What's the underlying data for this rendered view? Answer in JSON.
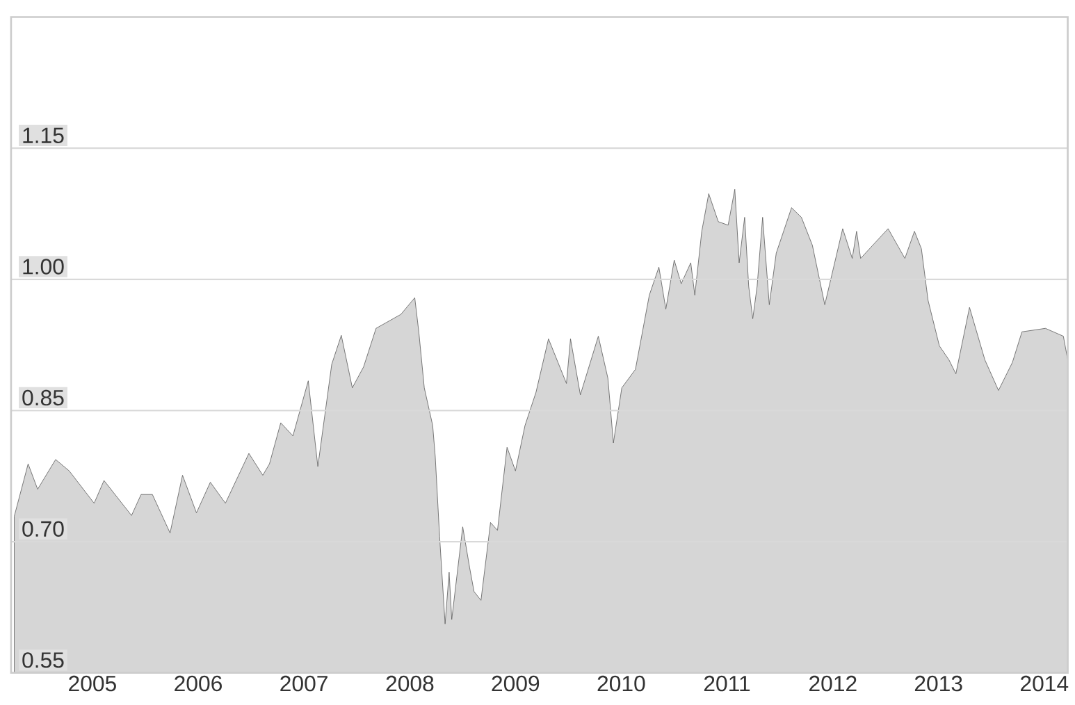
{
  "chart_data": {
    "type": "area",
    "x": [
      "2004-10-04",
      "2004-11-21",
      "2004-12-24",
      "2005-02-24",
      "2005-04-12",
      "2005-07-07",
      "2005-08-10",
      "2005-11-13",
      "2005-12-16",
      "2006-01-24",
      "2006-03-26",
      "2006-05-08",
      "2006-06-25",
      "2006-08-12",
      "2006-10-03",
      "2006-12-23",
      "2007-02-09",
      "2007-03-04",
      "2007-04-12",
      "2007-05-24",
      "2007-07-16",
      "2007-08-18",
      "2007-10-05",
      "2007-11-07",
      "2007-12-15",
      "2008-01-23",
      "2008-03-06",
      "2008-05-31",
      "2008-07-18",
      "2008-08-01",
      "2008-08-20",
      "2008-09-18",
      "2008-09-27",
      "2008-10-12",
      "2008-10-31",
      "2008-11-14",
      "2008-11-23",
      "2008-12-31",
      "2009-01-24",
      "2009-02-08",
      "2009-03-04",
      "2009-04-06",
      "2009-04-30",
      "2009-06-02",
      "2009-07-01",
      "2009-08-03",
      "2009-09-10",
      "2009-10-23",
      "2009-12-24",
      "2010-01-07",
      "2010-02-10",
      "2010-04-13",
      "2010-05-16",
      "2010-06-04",
      "2010-07-03",
      "2010-08-19",
      "2010-10-06",
      "2010-11-08",
      "2010-12-02",
      "2010-12-31",
      "2011-01-24",
      "2011-02-26",
      "2011-03-12",
      "2011-04-05",
      "2011-04-29",
      "2011-06-01",
      "2011-07-05",
      "2011-07-28",
      "2011-08-12",
      "2011-08-31",
      "2011-09-14",
      "2011-09-28",
      "2011-10-13",
      "2011-11-01",
      "2011-11-24",
      "2011-12-18",
      "2012-02-09",
      "2012-03-14",
      "2012-04-21",
      "2012-06-03",
      "2012-08-04",
      "2012-09-06",
      "2012-09-21",
      "2012-10-05",
      "2013-01-08",
      "2013-03-07",
      "2013-04-09",
      "2013-05-03",
      "2013-05-26",
      "2013-07-04",
      "2013-08-06",
      "2013-08-30",
      "2013-10-16",
      "2013-12-08",
      "2014-01-24",
      "2014-03-13",
      "2014-04-15",
      "2014-07-05",
      "2014-09-05",
      "2014-09-20"
    ],
    "series": [
      {
        "color": "#5a5a5a",
        "values": [
          0.729,
          0.789,
          0.76,
          0.794,
          0.781,
          0.744,
          0.77,
          0.73,
          0.754,
          0.754,
          0.71,
          0.776,
          0.733,
          0.768,
          0.744,
          0.801,
          0.776,
          0.789,
          0.836,
          0.821,
          0.884,
          0.786,
          0.903,
          0.936,
          0.876,
          0.9,
          0.944,
          0.96,
          0.979,
          0.94,
          0.876,
          0.833,
          0.797,
          0.706,
          0.606,
          0.665,
          0.611,
          0.717,
          0.67,
          0.643,
          0.633,
          0.722,
          0.713,
          0.808,
          0.781,
          0.833,
          0.871,
          0.932,
          0.881,
          0.932,
          0.868,
          0.935,
          0.887,
          0.813,
          0.876,
          0.897,
          0.982,
          1.014,
          0.966,
          1.022,
          0.995,
          1.019,
          0.982,
          1.055,
          1.098,
          1.066,
          1.062,
          1.103,
          1.019,
          1.071,
          0.992,
          0.955,
          0.992,
          1.071,
          0.971,
          1.03,
          1.082,
          1.071,
          1.039,
          0.971,
          1.058,
          1.024,
          1.055,
          1.024,
          1.058,
          1.024,
          1.055,
          1.035,
          0.976,
          0.924,
          0.908,
          0.892,
          0.968,
          0.908,
          0.873,
          0.905,
          0.94,
          0.944,
          0.935,
          0.908
        ]
      }
    ],
    "xlim": [
      "2004-09-23",
      "2014-09-20"
    ],
    "xticks": [
      {
        "value": "2005-07-01",
        "label": "2005"
      },
      {
        "value": "2006-07-01",
        "label": "2006"
      },
      {
        "value": "2007-07-01",
        "label": "2007"
      },
      {
        "value": "2008-07-01",
        "label": "2008"
      },
      {
        "value": "2009-07-01",
        "label": "2009"
      },
      {
        "value": "2010-07-01",
        "label": "2010"
      },
      {
        "value": "2011-07-01",
        "label": "2011"
      },
      {
        "value": "2012-07-01",
        "label": "2012"
      },
      {
        "value": "2013-07-01",
        "label": "2013"
      },
      {
        "value": "2014-07-01",
        "label": "2014"
      }
    ],
    "ylim": [
      0.55,
      1.3
    ],
    "yticks": [
      {
        "value": 0.55,
        "label": "0.55"
      },
      {
        "value": 0.7,
        "label": "0.70"
      },
      {
        "value": 0.85,
        "label": "0.85"
      },
      {
        "value": 1.0,
        "label": "1.00"
      },
      {
        "value": 1.15,
        "label": "1.15"
      }
    ],
    "grid": "y"
  }
}
